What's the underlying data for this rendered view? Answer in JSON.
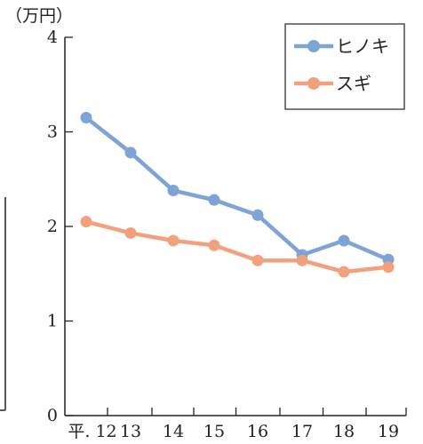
{
  "chart_data": {
    "type": "line",
    "unit_label": "（万円）",
    "categories": [
      "平. 12",
      "13",
      "14",
      "15",
      "16",
      "17",
      "18",
      "19"
    ],
    "ylim": [
      0,
      4
    ],
    "yticks": [
      0,
      1,
      2,
      3,
      4
    ],
    "grid": false,
    "legend_position": "top-right",
    "series": [
      {
        "name": "ヒノキ",
        "color": "#7ea3d6",
        "values": [
          3.15,
          2.78,
          2.38,
          2.28,
          2.12,
          1.7,
          1.85,
          1.65
        ]
      },
      {
        "name": "スギ",
        "color": "#f3a07e",
        "values": [
          2.05,
          1.93,
          1.85,
          1.8,
          1.64,
          1.64,
          1.52,
          1.57
        ]
      }
    ]
  }
}
